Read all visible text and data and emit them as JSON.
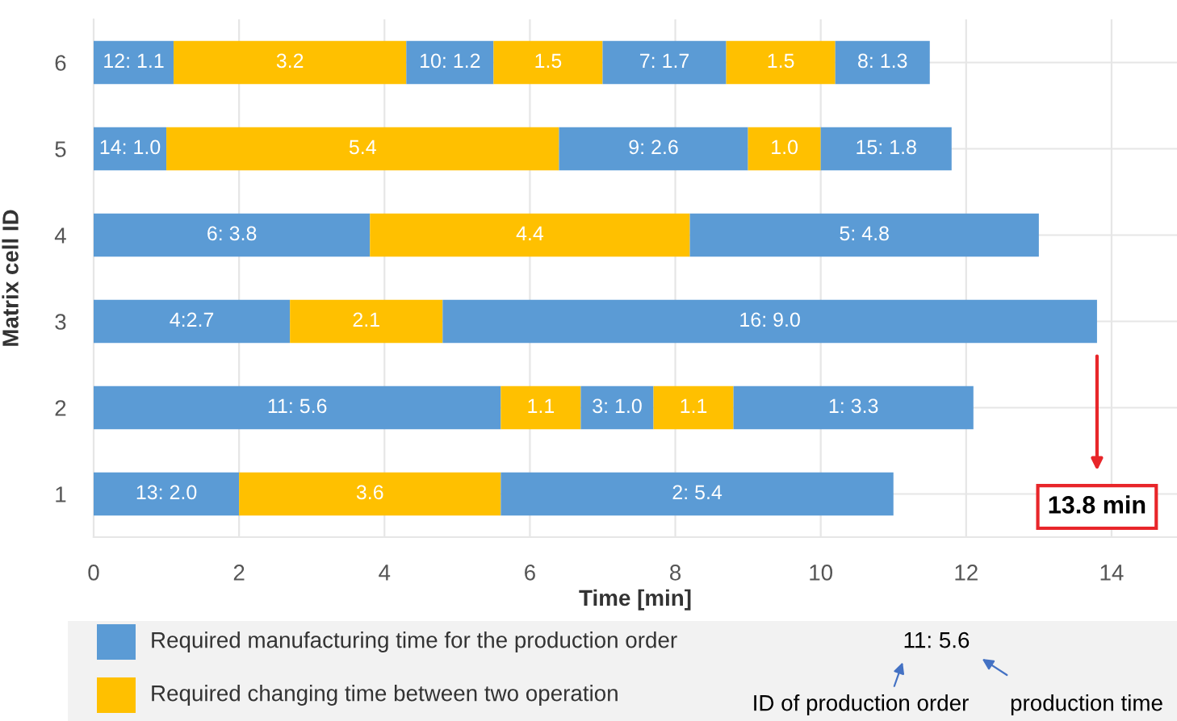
{
  "chart_data": {
    "type": "bar",
    "orientation": "horizontal",
    "stacked": true,
    "xlabel": "Time [min]",
    "ylabel": "Matrix cell ID",
    "categories": [
      "6",
      "5",
      "4",
      "3",
      "2",
      "1"
    ],
    "series": [
      {
        "color": "#5b9bd5",
        "values": [
          1.1,
          1.0,
          3.8,
          2.7,
          5.6,
          2.0
        ],
        "value_labels": [
          "12: 1.1",
          "14: 1.0",
          "6: 3.8",
          "4:2.7",
          "11: 5.6",
          "13: 2.0"
        ]
      },
      {
        "color": "#ffc000",
        "values": [
          3.2,
          5.4,
          4.4,
          2.1,
          1.1,
          3.6
        ],
        "value_labels": [
          "3.2",
          "5.4",
          "4.4",
          "2.1",
          "1.1",
          "3.6"
        ]
      },
      {
        "color": "#5b9bd5",
        "values": [
          1.2,
          2.6,
          4.8,
          9.0,
          1.0,
          5.4
        ],
        "value_labels": [
          "10: 1.2",
          "9: 2.6",
          "5: 4.8",
          "16: 9.0",
          "3: 1.0",
          "2: 5.4"
        ]
      },
      {
        "color": "#ffc000",
        "values": [
          1.5,
          1.0,
          null,
          null,
          1.1,
          null
        ],
        "value_labels": [
          "1.5",
          "1.0",
          null,
          null,
          "1.1",
          null
        ]
      },
      {
        "color": "#5b9bd5",
        "values": [
          1.7,
          1.8,
          null,
          null,
          3.3,
          null
        ],
        "value_labels": [
          "7: 1.7",
          "15: 1.8",
          null,
          null,
          "1: 3.3",
          null
        ]
      },
      {
        "color": "#ffc000",
        "values": [
          1.5,
          null,
          null,
          null,
          null,
          null
        ],
        "value_labels": [
          "1.5",
          null,
          null,
          null,
          null,
          null
        ]
      },
      {
        "color": "#5b9bd5",
        "values": [
          1.3,
          null,
          null,
          null,
          null,
          null
        ],
        "value_labels": [
          "8: 1.3",
          null,
          null,
          null,
          null,
          null
        ]
      }
    ],
    "xlim": [
      0,
      14.9
    ],
    "xticks": [
      0,
      2,
      4,
      6,
      8,
      10,
      12,
      14
    ],
    "grid": true,
    "legend": false,
    "annotations": [
      "13.8 min",
      "Required manufacturing time for the production order",
      "Required changing time between two operation",
      "11: 5.6",
      "ID of production order",
      "production time"
    ]
  }
}
